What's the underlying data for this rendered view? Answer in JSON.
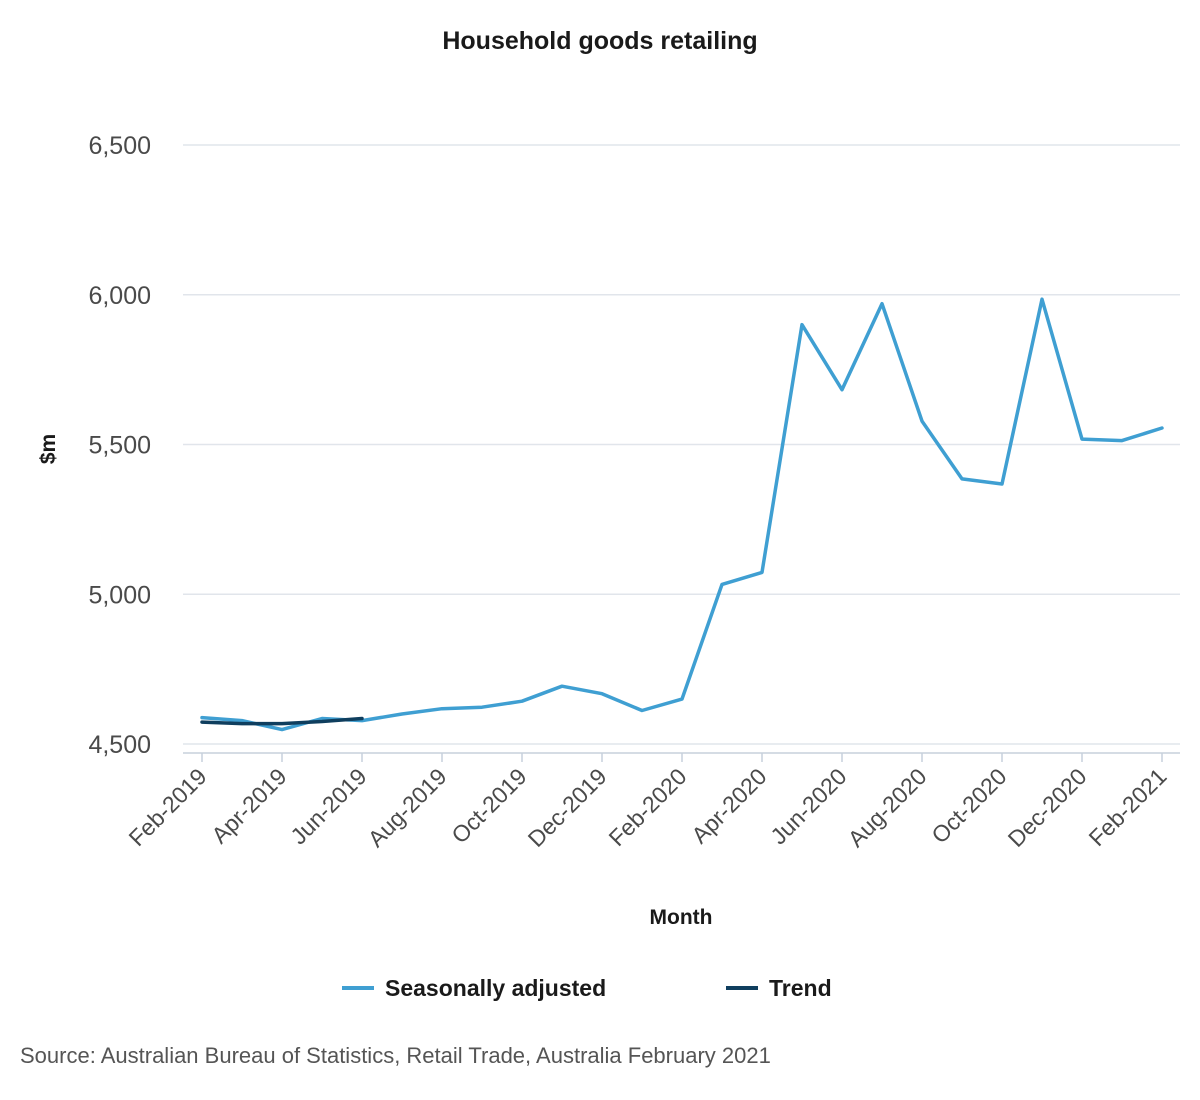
{
  "chart_data": {
    "type": "line",
    "title": "Household goods retailing",
    "xlabel": "Month",
    "ylabel": "$m",
    "ylim": [
      4500,
      6500
    ],
    "yticks": [
      "4,500",
      "5,000",
      "5,500",
      "6,000",
      "6,500"
    ],
    "ytick_values": [
      4500,
      5000,
      5500,
      6000,
      6500
    ],
    "x": [
      "Feb-2019",
      "Mar-2019",
      "Apr-2019",
      "May-2019",
      "Jun-2019",
      "Jul-2019",
      "Aug-2019",
      "Sep-2019",
      "Oct-2019",
      "Nov-2019",
      "Dec-2019",
      "Jan-2020",
      "Feb-2020",
      "Mar-2020",
      "Apr-2020",
      "May-2020",
      "Jun-2020",
      "Jul-2020",
      "Aug-2020",
      "Sep-2020",
      "Oct-2020",
      "Nov-2020",
      "Dec-2020",
      "Jan-2021",
      "Feb-2021"
    ],
    "xtick_labels": [
      "Feb-2019",
      "Apr-2019",
      "Jun-2019",
      "Aug-2019",
      "Oct-2019",
      "Dec-2019",
      "Feb-2020",
      "Apr-2020",
      "Jun-2020",
      "Aug-2020",
      "Oct-2020",
      "Dec-2020",
      "Feb-2021"
    ],
    "series": [
      {
        "name": "Seasonally adjusted",
        "color": "#3f9fd2",
        "values": [
          4588,
          4578,
          4548,
          4585,
          4578,
          4600,
          4618,
          4623,
          4643,
          4693,
          4668,
          4612,
          4650,
          5033,
          5073,
          5900,
          5683,
          5970,
          5578,
          5385,
          5368,
          5985,
          5518,
          5513,
          5555
        ]
      },
      {
        "name": "Trend",
        "color": "#0f3e5e",
        "values": [
          4573,
          4568,
          4568,
          4575,
          4585,
          null,
          null,
          null,
          null,
          null,
          null,
          null,
          null,
          null,
          null,
          null,
          null,
          null,
          null,
          null,
          null,
          null,
          null,
          null,
          null
        ]
      }
    ],
    "grid": true,
    "legend": "bottom-center"
  },
  "source": "Source: Australian Bureau of Statistics, Retail Trade, Australia February 2021"
}
